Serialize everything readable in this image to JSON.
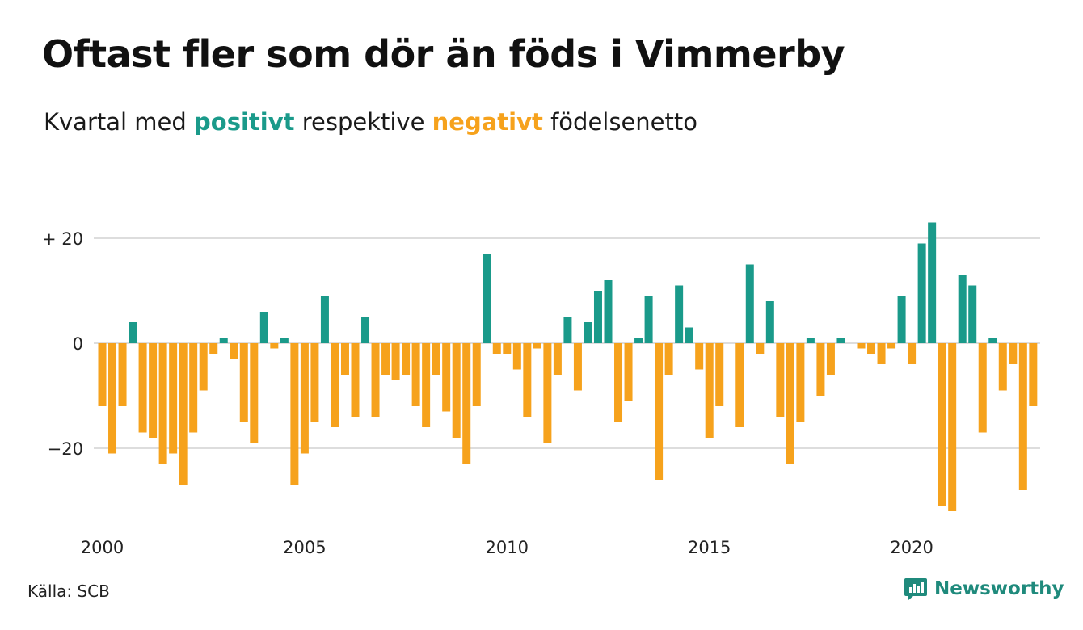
{
  "title": "Oftast fler som dör än föds i Vimmerby",
  "subtitle": {
    "prefix": "Kvartal med",
    "positive_word": "positivt",
    "middle": "respektive",
    "negative_word": "negativt",
    "suffix": "födelsenetto"
  },
  "source": "Källa: SCB",
  "brand": "Newsworthy",
  "colors": {
    "positive": "#1a9a8a",
    "negative": "#f6a21c",
    "grid": "#dddddd",
    "brand": "#1f8a7c"
  },
  "chart_data": {
    "type": "bar",
    "x_start": 2000,
    "x_step": "quarter",
    "xticks": [
      {
        "year": 2000,
        "label": "2000"
      },
      {
        "year": 2005,
        "label": "2005"
      },
      {
        "year": 2010,
        "label": "2010"
      },
      {
        "year": 2015,
        "label": "2015"
      },
      {
        "year": 2020,
        "label": "2020"
      }
    ],
    "yticks": [
      {
        "value": 20,
        "label": "+ 20"
      },
      {
        "value": 0,
        "label": "0"
      },
      {
        "value": -20,
        "label": "−20"
      }
    ],
    "ylim": [
      -33,
      24
    ],
    "grid": true,
    "values": [
      -12,
      -21,
      -12,
      4,
      -17,
      -18,
      -23,
      -21,
      -27,
      -17,
      -9,
      -2,
      1,
      -3,
      -15,
      -19,
      6,
      -1,
      1,
      -27,
      -21,
      -15,
      9,
      -16,
      -6,
      -14,
      5,
      -14,
      -6,
      -7,
      -6,
      -12,
      -16,
      -6,
      -13,
      -18,
      -23,
      -12,
      17,
      -2,
      -2,
      -5,
      -14,
      -1,
      -19,
      -6,
      5,
      -9,
      4,
      10,
      12,
      -15,
      -11,
      1,
      9,
      -26,
      -6,
      11,
      3,
      -5,
      -18,
      -12,
      0,
      -16,
      15,
      -2,
      8,
      -14,
      -23,
      -15,
      1,
      -10,
      -6,
      1,
      0,
      -1,
      -2,
      -4,
      -1,
      9,
      -4,
      19,
      23,
      -31,
      -32,
      13,
      11,
      -17,
      1,
      -9,
      -4,
      -28,
      -12
    ]
  }
}
